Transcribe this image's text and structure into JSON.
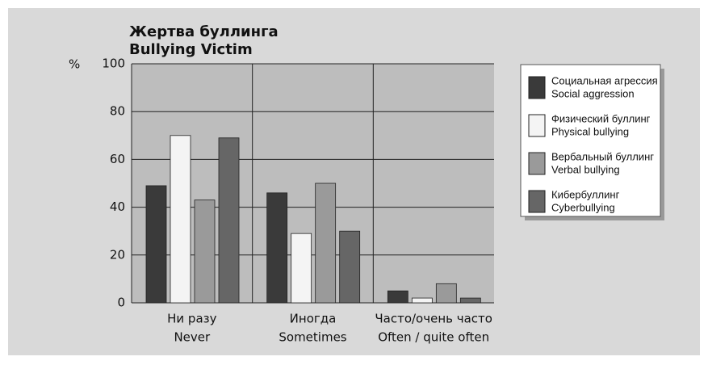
{
  "chart_data": {
    "type": "bar",
    "title": "Жертва буллинга",
    "subtitle": "Bullying Victim",
    "y_label": "%",
    "categories": [
      [
        "Ни разу",
        "Never"
      ],
      [
        "Иногда",
        "Sometimes"
      ],
      [
        "Часто/очень часто",
        "Often / quite often"
      ]
    ],
    "series": [
      {
        "name": [
          "Социальная агрессия",
          "Social aggression"
        ],
        "color": "#3a3a3a",
        "values": [
          49,
          46,
          5
        ]
      },
      {
        "name": [
          "Физический буллинг",
          "Physical bullying"
        ],
        "color": "#f4f4f4",
        "values": [
          70,
          29,
          2
        ]
      },
      {
        "name": [
          "Вербальный буллинг",
          "Verbal bullying"
        ],
        "color": "#9a9a9a",
        "values": [
          43,
          50,
          8
        ]
      },
      {
        "name": [
          "Кибербуллинг",
          "Cyberbullying"
        ],
        "color": "#666666",
        "values": [
          69,
          30,
          2
        ]
      }
    ],
    "ylim": [
      0,
      100
    ],
    "yticks": [
      0,
      20,
      40,
      60,
      80,
      100
    ],
    "grid": true,
    "legend": "right"
  }
}
